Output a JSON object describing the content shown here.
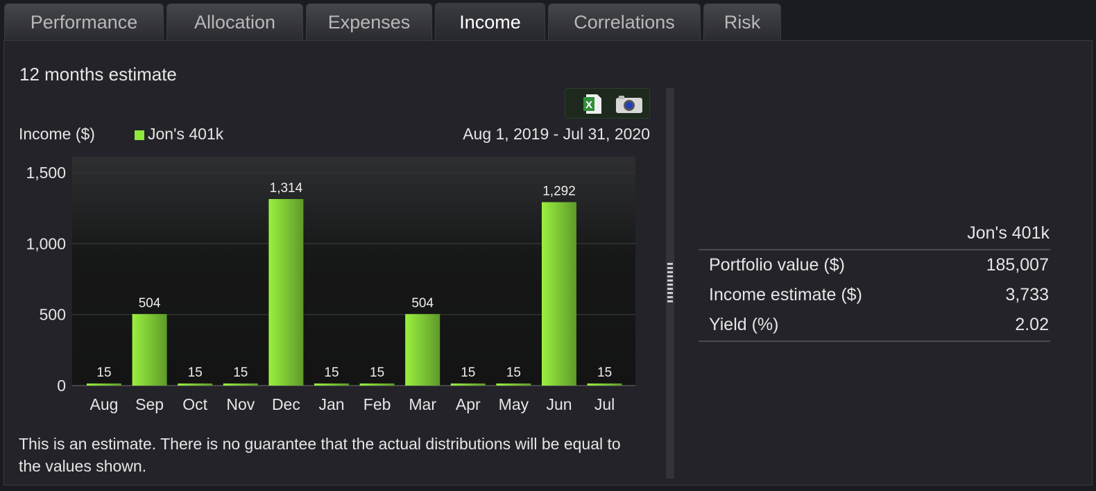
{
  "tabs": [
    {
      "label": "Performance"
    },
    {
      "label": "Allocation"
    },
    {
      "label": "Expenses"
    },
    {
      "label": "Income",
      "active": true
    },
    {
      "label": "Correlations"
    },
    {
      "label": "Risk"
    }
  ],
  "section_title": "12 months estimate",
  "toolbar": {
    "icons": [
      "excel-export-icon",
      "camera-snapshot-icon"
    ]
  },
  "chart_header": {
    "ylabel": "Income ($)",
    "legend": "Jon's 401k",
    "date_range": "Aug 1, 2019 - Jul 31, 2020"
  },
  "chart_data": {
    "type": "bar",
    "ylabel": "Income ($)",
    "categories": [
      "Aug",
      "Sep",
      "Oct",
      "Nov",
      "Dec",
      "Jan",
      "Feb",
      "Mar",
      "Apr",
      "May",
      "Jun",
      "Jul"
    ],
    "series": [
      {
        "name": "Jon's 401k",
        "values": [
          15,
          504,
          15,
          15,
          1314,
          15,
          15,
          504,
          15,
          15,
          1292,
          15
        ],
        "labels": [
          "15",
          "504",
          "15",
          "15",
          "1,314",
          "15",
          "15",
          "504",
          "15",
          "15",
          "1,292",
          "15"
        ],
        "color": "#8fe83a"
      }
    ],
    "yticks": [
      "0",
      "500",
      "1,000",
      "1,500"
    ],
    "ytick_values": [
      0,
      500,
      1000,
      1500
    ],
    "ylim": [
      0,
      1612
    ],
    "grid": true,
    "legend": "top-left"
  },
  "disclaimer": "This is an estimate. There is no guarantee that the actual distributions will be equal to the values shown.",
  "summary": {
    "column": "Jon's 401k",
    "rows": [
      {
        "label": "Portfolio value ($)",
        "value": "185,007"
      },
      {
        "label": "Income estimate ($)",
        "value": "3,733"
      },
      {
        "label": "Yield (%)",
        "value": "2.02"
      }
    ]
  }
}
